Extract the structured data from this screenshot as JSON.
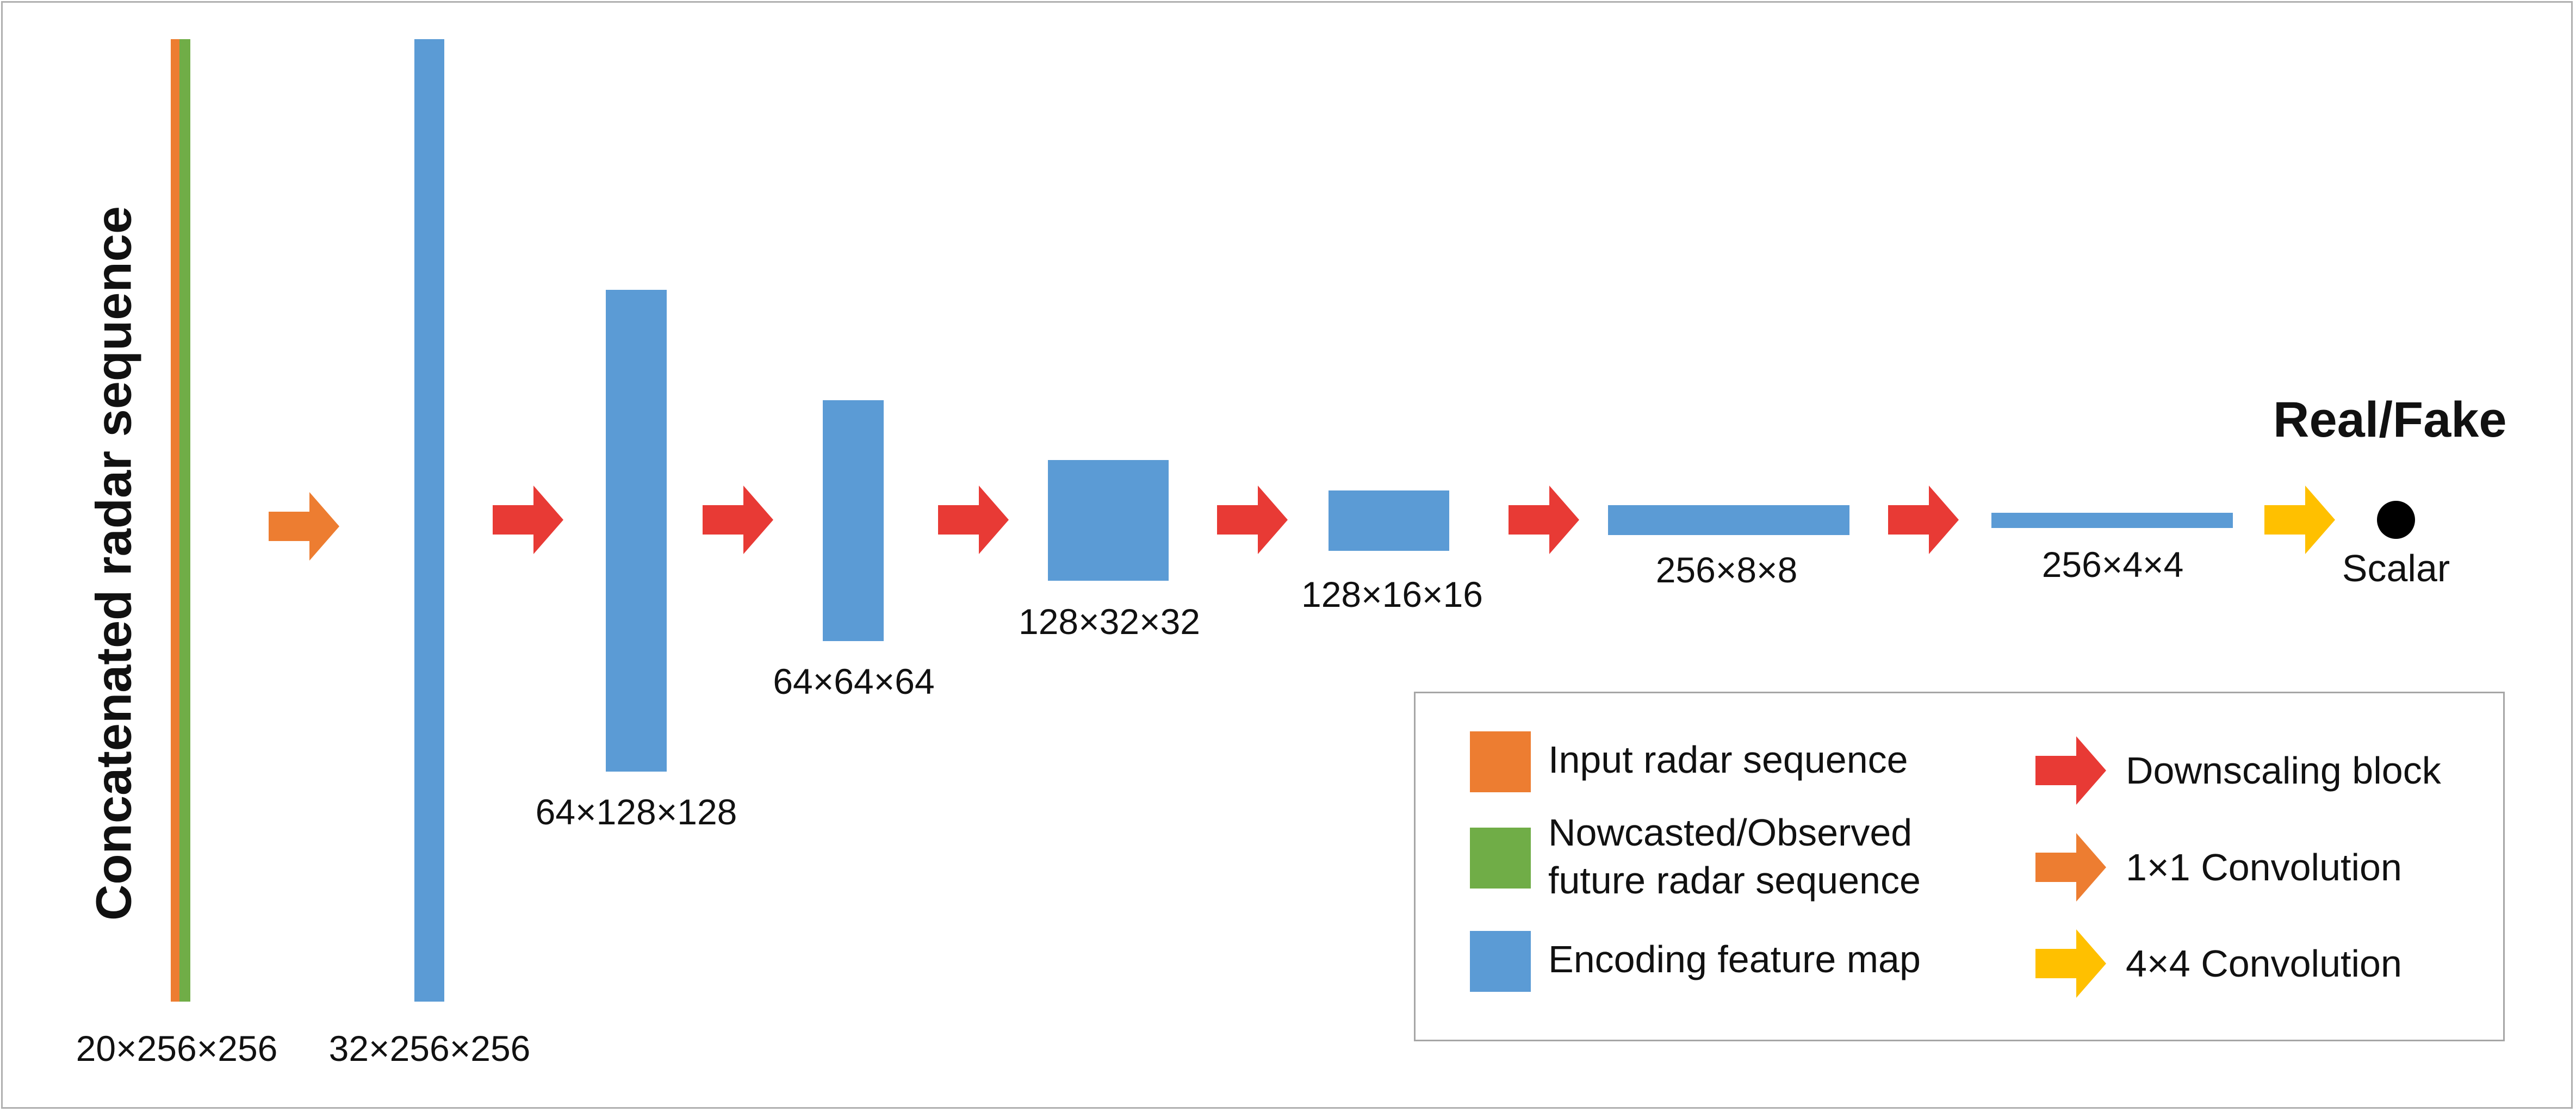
{
  "colors": {
    "input": "#ED7D31",
    "nowcast": "#70AD47",
    "feature": "#5B9BD5",
    "downscale": "#E83A35",
    "conv1x1": "#ED7D31",
    "conv4x4": "#FFC000"
  },
  "diagram": {
    "vertical_title": "Concatenated radar sequence",
    "output_title": "Real/Fake",
    "output_label": "Scalar",
    "stage_labels": [
      "20×256×256",
      "32×256×256",
      "64×128×128",
      "64×64×64",
      "128×32×32",
      "128×16×16",
      "256×8×8",
      "256×4×4"
    ]
  },
  "legend": {
    "input_label": "Input radar sequence",
    "nowcast_label_line1": "Nowcasted/Observed",
    "nowcast_label_line2": "future radar sequence",
    "feature_label": "Encoding feature map",
    "downscale_label": "Downscaling block",
    "conv1_label": "1×1 Convolution",
    "conv4_label": "4×4 Convolution"
  }
}
